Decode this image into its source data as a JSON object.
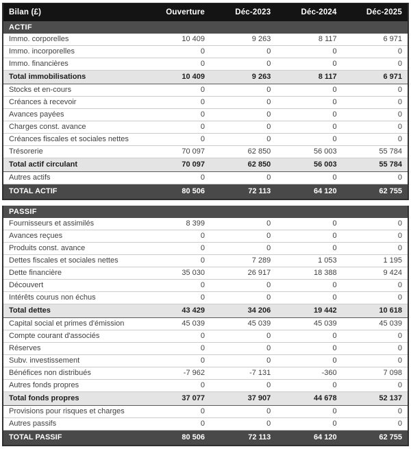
{
  "table": {
    "header": {
      "label": "Bilan (£)",
      "columns": [
        "Ouverture",
        "Déc-2023",
        "Déc-2024",
        "Déc-2025"
      ]
    },
    "colors": {
      "header_bg": "#141414",
      "section_bg": "#4d4d4d",
      "grand_bg": "#494949",
      "subtotal_bg": "#e4e4e4",
      "border_dark": "#2e2e2e",
      "row_line": "#cccccc",
      "text_dark": "#3f3f3f"
    },
    "sections": [
      {
        "name": "ACTIF",
        "rows": [
          {
            "label": "Immo. corporelles",
            "values": [
              "10 409",
              "9 263",
              "8 117",
              "6 971"
            ],
            "style": "normal"
          },
          {
            "label": "Immo. incorporelles",
            "values": [
              "0",
              "0",
              "0",
              "0"
            ],
            "style": "normal"
          },
          {
            "label": "Immo. financières",
            "values": [
              "0",
              "0",
              "0",
              "0"
            ],
            "style": "normal"
          },
          {
            "label": "Total immobilisations",
            "values": [
              "10 409",
              "9 263",
              "8 117",
              "6 971"
            ],
            "style": "subtotal"
          },
          {
            "label": "Stocks et en-cours",
            "values": [
              "0",
              "0",
              "0",
              "0"
            ],
            "style": "normal"
          },
          {
            "label": "Créances à recevoir",
            "values": [
              "0",
              "0",
              "0",
              "0"
            ],
            "style": "normal"
          },
          {
            "label": "Avances payées",
            "values": [
              "0",
              "0",
              "0",
              "0"
            ],
            "style": "normal"
          },
          {
            "label": "Charges const. avance",
            "values": [
              "0",
              "0",
              "0",
              "0"
            ],
            "style": "normal"
          },
          {
            "label": "Créances fiscales et sociales nettes",
            "values": [
              "0",
              "0",
              "0",
              "0"
            ],
            "style": "normal"
          },
          {
            "label": "Trésorerie",
            "values": [
              "70 097",
              "62 850",
              "56 003",
              "55 784"
            ],
            "style": "normal"
          },
          {
            "label": "Total actif circulant",
            "values": [
              "70 097",
              "62 850",
              "56 003",
              "55 784"
            ],
            "style": "subtotal"
          },
          {
            "label": "Autres actifs",
            "values": [
              "0",
              "0",
              "0",
              "0"
            ],
            "style": "normal"
          },
          {
            "label": "TOTAL ACTIF",
            "values": [
              "80 506",
              "72 113",
              "64 120",
              "62 755"
            ],
            "style": "grand"
          }
        ]
      },
      {
        "name": "PASSIF",
        "rows": [
          {
            "label": "Fournisseurs et assimilés",
            "values": [
              "8 399",
              "0",
              "0",
              "0"
            ],
            "style": "normal"
          },
          {
            "label": "Avances reçues",
            "values": [
              "0",
              "0",
              "0",
              "0"
            ],
            "style": "normal"
          },
          {
            "label": "Produits const. avance",
            "values": [
              "0",
              "0",
              "0",
              "0"
            ],
            "style": "normal"
          },
          {
            "label": "Dettes fiscales et sociales nettes",
            "values": [
              "0",
              "7 289",
              "1 053",
              "1 195"
            ],
            "style": "normal"
          },
          {
            "label": "Dette financière",
            "values": [
              "35 030",
              "26 917",
              "18 388",
              "9 424"
            ],
            "style": "normal"
          },
          {
            "label": "Découvert",
            "values": [
              "0",
              "0",
              "0",
              "0"
            ],
            "style": "normal"
          },
          {
            "label": "Intérêts courus non échus",
            "values": [
              "0",
              "0",
              "0",
              "0"
            ],
            "style": "normal"
          },
          {
            "label": "Total dettes",
            "values": [
              "43 429",
              "34 206",
              "19 442",
              "10 618"
            ],
            "style": "subtotal"
          },
          {
            "label": "Capital social et primes d'émission",
            "values": [
              "45 039",
              "45 039",
              "45 039",
              "45 039"
            ],
            "style": "normal"
          },
          {
            "label": "Compte courant d'associés",
            "values": [
              "0",
              "0",
              "0",
              "0"
            ],
            "style": "normal"
          },
          {
            "label": "Réserves",
            "values": [
              "0",
              "0",
              "0",
              "0"
            ],
            "style": "normal"
          },
          {
            "label": "Subv. investissement",
            "values": [
              "0",
              "0",
              "0",
              "0"
            ],
            "style": "normal"
          },
          {
            "label": "Bénéfices non distribués",
            "values": [
              "-7 962",
              "-7 131",
              "-360",
              "7 098"
            ],
            "style": "normal"
          },
          {
            "label": "Autres fonds propres",
            "values": [
              "0",
              "0",
              "0",
              "0"
            ],
            "style": "normal"
          },
          {
            "label": "Total fonds propres",
            "values": [
              "37 077",
              "37 907",
              "44 678",
              "52 137"
            ],
            "style": "subtotal"
          },
          {
            "label": "Provisions pour risques et charges",
            "values": [
              "0",
              "0",
              "0",
              "0"
            ],
            "style": "normal"
          },
          {
            "label": "Autres passifs",
            "values": [
              "0",
              "0",
              "0",
              "0"
            ],
            "style": "normal"
          },
          {
            "label": "TOTAL PASSIF",
            "values": [
              "80 506",
              "72 113",
              "64 120",
              "62 755"
            ],
            "style": "grand"
          }
        ]
      }
    ]
  }
}
